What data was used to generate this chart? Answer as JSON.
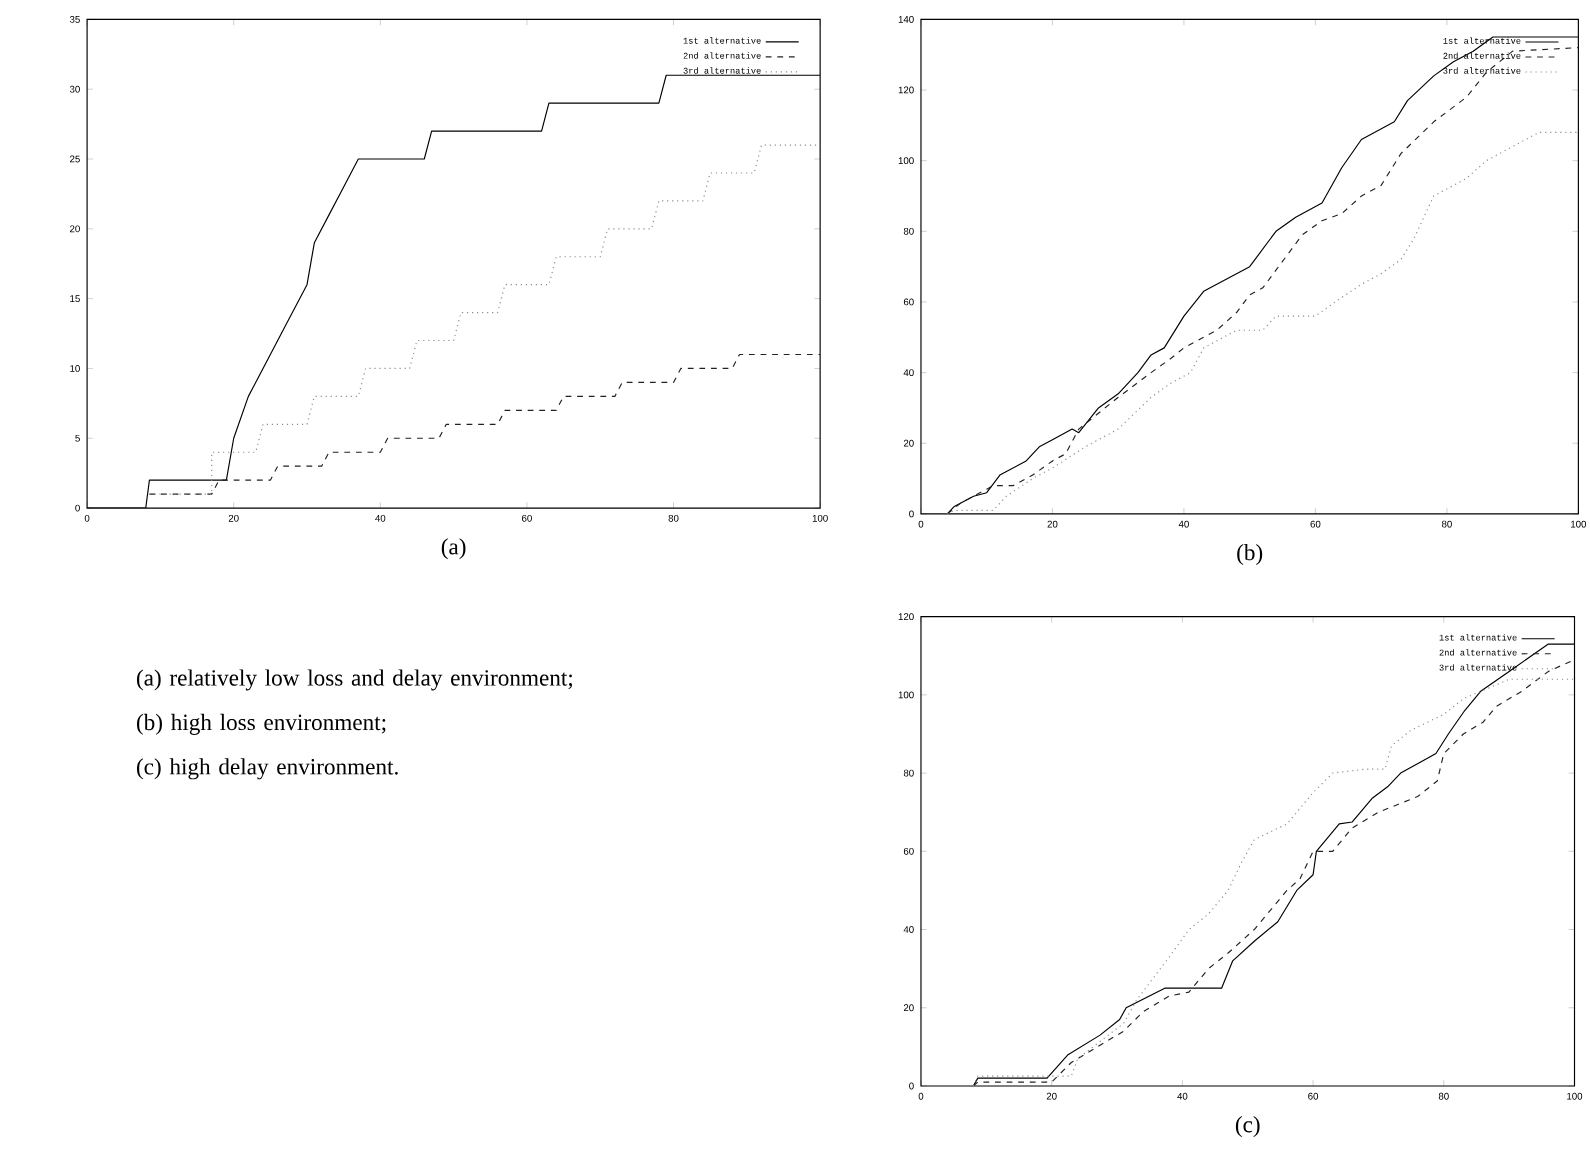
{
  "chart_data": [
    {
      "type": "line",
      "title": "(a)",
      "xlim": [
        0,
        100
      ],
      "ylim": [
        0,
        35
      ],
      "xticks": [
        0,
        20,
        40,
        60,
        80,
        100
      ],
      "yticks": [
        0,
        5,
        10,
        15,
        20,
        25,
        30,
        35
      ],
      "legend": "top right",
      "series": [
        {
          "name": "1st alternative",
          "color": "#000000",
          "line_style": "solid",
          "x": [
            0,
            8,
            8.5,
            19,
            20,
            22,
            23,
            25,
            27,
            30,
            31,
            33,
            35,
            37,
            46,
            47,
            62,
            63,
            78,
            79,
            100
          ],
          "values": [
            0,
            0,
            2,
            2,
            5,
            8,
            9,
            11,
            13,
            16,
            19,
            21,
            23,
            25,
            25,
            27,
            27,
            29,
            29,
            31,
            31
          ]
        },
        {
          "name": "2nd alternative",
          "color": "#222222",
          "line_style": "dashed",
          "x": [
            8.5,
            17,
            18,
            23,
            25,
            26,
            32,
            33,
            40,
            41,
            48,
            49,
            56,
            57,
            64,
            65,
            72,
            73,
            80,
            81,
            88,
            89,
            100
          ],
          "values": [
            1,
            1,
            2,
            2,
            2,
            3,
            3,
            4,
            4,
            5,
            5,
            6,
            6,
            7,
            7,
            8,
            8,
            9,
            9,
            10,
            10,
            11,
            11
          ]
        },
        {
          "name": "3rd alternative",
          "color": "#888888",
          "line_style": "dotted",
          "x": [
            8.5,
            17,
            17,
            23,
            24,
            30,
            31,
            37,
            38,
            44,
            45,
            50,
            51,
            56,
            57,
            63,
            64,
            70,
            71,
            77,
            78,
            84,
            85,
            91,
            92,
            100
          ],
          "values": [
            1,
            1,
            4,
            4,
            6,
            6,
            8,
            8,
            10,
            10,
            12,
            12,
            14,
            14,
            16,
            16,
            18,
            18,
            20,
            20,
            22,
            22,
            24,
            24,
            26,
            26
          ]
        }
      ]
    },
    {
      "type": "line",
      "title": "(b)",
      "xlim": [
        0,
        100
      ],
      "ylim": [
        0,
        140
      ],
      "xticks": [
        0,
        20,
        40,
        60,
        80,
        100
      ],
      "yticks": [
        0,
        20,
        40,
        60,
        80,
        100,
        120,
        140
      ],
      "legend": "top right",
      "series": [
        {
          "name": "1st alternative",
          "color": "#000000",
          "line_style": "solid",
          "x": [
            4,
            5,
            8,
            10,
            12,
            16,
            18,
            20,
            23,
            24,
            27,
            30,
            33,
            35,
            37,
            40,
            43,
            48,
            50,
            54,
            57,
            61,
            64,
            67,
            72,
            74,
            78,
            81,
            84,
            87,
            100
          ],
          "values": [
            0,
            2,
            5,
            6,
            11,
            15,
            19,
            21,
            24,
            23,
            30,
            34,
            40,
            45,
            47,
            56,
            63,
            68,
            70,
            80,
            84,
            88,
            98,
            106,
            111,
            117,
            124,
            128,
            131,
            135,
            135
          ]
        },
        {
          "name": "2nd alternative",
          "color": "#222222",
          "line_style": "dashed",
          "x": [
            4,
            6,
            10,
            11,
            14,
            17,
            20,
            22,
            24,
            30,
            35,
            38,
            40,
            45,
            48,
            50,
            52,
            54,
            58,
            61,
            64,
            67,
            70,
            73,
            78,
            83,
            86,
            90,
            100
          ],
          "values": [
            0,
            3,
            7,
            8,
            8,
            11,
            15,
            17,
            24,
            33,
            40,
            44,
            47,
            52,
            57,
            62,
            64,
            69,
            79,
            83,
            85,
            90,
            93,
            102,
            111,
            118,
            125,
            131,
            132
          ]
        },
        {
          "name": "3rd alternative",
          "color": "#888888",
          "line_style": "dotted",
          "x": [
            4,
            5,
            11,
            13,
            17,
            20,
            25,
            30,
            35,
            38,
            41,
            43,
            48,
            52,
            54,
            60,
            63,
            67,
            70,
            73,
            75,
            78,
            80,
            83,
            86,
            90,
            94,
            100
          ],
          "values": [
            0,
            1,
            1,
            5,
            10,
            13,
            19,
            24,
            33,
            37,
            40,
            47,
            52,
            52,
            56,
            56,
            60,
            65,
            68,
            72,
            78,
            90,
            92,
            95,
            100,
            104,
            108,
            108
          ]
        }
      ]
    },
    {
      "type": "other",
      "annotations": [
        "(a) relatively low loss and delay environment;",
        "(b) high loss environment;",
        "(c) high delay environment."
      ]
    },
    {
      "type": "line",
      "title": "(c)",
      "xlim": [
        0,
        100
      ],
      "ylim": [
        0,
        120
      ],
      "xticks": [
        0,
        20,
        40,
        60,
        80,
        100
      ],
      "yticks": [
        0,
        20,
        40,
        60,
        80,
        100,
        120
      ],
      "legend": "top right",
      "series": [
        {
          "name": "1st alternative",
          "color": "#000000",
          "line_style": "solid",
          "x": [
            8,
            8.7,
            19.3,
            22.5,
            27.4,
            30.4,
            31.4,
            37.3,
            46,
            47.7,
            51,
            54.6,
            57.5,
            60,
            60.5,
            64,
            66,
            69,
            71.4,
            73.4,
            78.8,
            80.7,
            83.2,
            85.7,
            90,
            96,
            100
          ],
          "values": [
            0,
            2,
            2,
            8,
            13,
            17,
            20,
            25,
            25,
            32,
            37,
            42,
            50,
            54,
            60,
            67,
            67.5,
            73.5,
            76.5,
            80,
            85,
            90,
            96,
            101,
            106,
            113,
            113
          ]
        },
        {
          "name": "2nd alternative",
          "color": "#222222",
          "line_style": "dashed",
          "x": [
            8,
            8.7,
            20,
            23,
            28,
            31,
            34,
            38,
            41,
            44,
            47,
            51,
            56,
            58,
            60,
            63,
            66,
            70,
            76,
            79,
            80,
            83,
            86,
            88,
            92,
            96,
            100
          ],
          "values": [
            0,
            1,
            1,
            6,
            11,
            14,
            19,
            23,
            24,
            30,
            34,
            40,
            50,
            53,
            60,
            60,
            66,
            70,
            74,
            78,
            85,
            90,
            93,
            97,
            101,
            106,
            109
          ]
        },
        {
          "name": "3rd alternative",
          "color": "#888888",
          "line_style": "dotted",
          "x": [
            8,
            8.7,
            23,
            24,
            31,
            33,
            38,
            41,
            44,
            47,
            49,
            51,
            56,
            60,
            63,
            68,
            71,
            72,
            75,
            80,
            83,
            90,
            100
          ],
          "values": [
            0,
            2.5,
            2.5,
            7,
            16,
            22,
            33,
            40,
            44,
            50,
            57,
            63,
            67,
            75,
            80,
            81,
            81,
            87,
            91,
            95,
            99,
            104,
            104
          ]
        }
      ]
    }
  ]
}
